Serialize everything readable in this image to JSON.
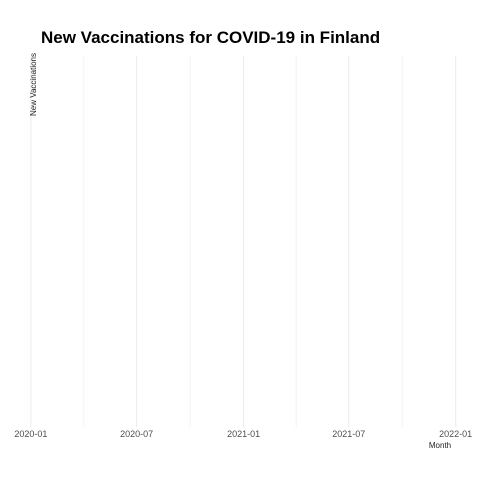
{
  "chart_data": {
    "type": "line",
    "title": "New Vaccinations for COVID-19 in Finland",
    "xlabel": "Month",
    "ylabel": "New Vaccinations",
    "x_tick_labels": [
      "2020-01",
      "2020-07",
      "2021-01",
      "2021-07",
      "2022-01"
    ],
    "x_ticks": [
      "2020-01-01",
      "2020-07-01",
      "2021-01-01",
      "2021-07-01",
      "2022-01-01"
    ],
    "xlim": [
      "2019-12-27",
      "2022-01-05"
    ],
    "series": [],
    "grid": true,
    "legend": "none"
  }
}
